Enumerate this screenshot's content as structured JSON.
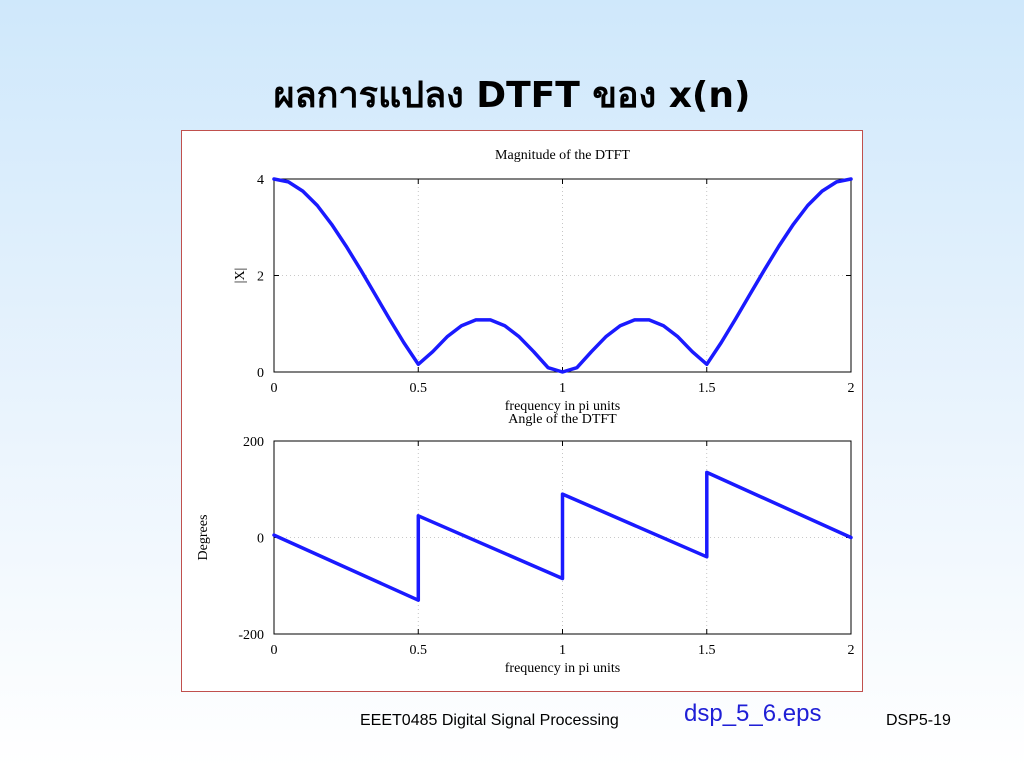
{
  "slide": {
    "title": "ผลการแปลง DTFT ของ x(n)",
    "footer_course": "EEET0485 Digital Signal Processing",
    "footer_file": "dsp_5_6.eps",
    "footer_page": "DSP5-19"
  },
  "colors": {
    "line": "#1a1aff",
    "frame": "#c0504d",
    "file_link": "#1f1fd6"
  },
  "chart_data": [
    {
      "type": "line",
      "title": "Magnitude of the DTFT",
      "xlabel": "frequency in pi units",
      "ylabel": "|X|",
      "xlim": [
        0,
        2
      ],
      "ylim": [
        0,
        4
      ],
      "xticks": [
        "0",
        "0.5",
        "1",
        "1.5",
        "2"
      ],
      "yticks": [
        "0",
        "2",
        "4"
      ],
      "grid": true,
      "series": [
        {
          "x": [
            0,
            0.05,
            0.1,
            0.15,
            0.2,
            0.25,
            0.3,
            0.35,
            0.4,
            0.45,
            0.5,
            0.55,
            0.6,
            0.65,
            0.7,
            0.75,
            0.8,
            0.85,
            0.9,
            0.95,
            1.0,
            1.05,
            1.1,
            1.15,
            1.2,
            1.25,
            1.3,
            1.35,
            1.4,
            1.45,
            1.5,
            1.55,
            1.6,
            1.65,
            1.7,
            1.75,
            1.8,
            1.85,
            1.9,
            1.95,
            2.0
          ],
          "y": [
            4.0,
            3.94,
            3.75,
            3.45,
            3.06,
            2.61,
            2.12,
            1.61,
            1.1,
            0.61,
            0.16,
            0.42,
            0.73,
            0.96,
            1.08,
            1.08,
            0.96,
            0.73,
            0.42,
            0.09,
            0.0,
            0.09,
            0.42,
            0.73,
            0.96,
            1.08,
            1.08,
            0.96,
            0.73,
            0.42,
            0.16,
            0.61,
            1.1,
            1.61,
            2.12,
            2.61,
            3.06,
            3.45,
            3.75,
            3.94,
            4.0
          ]
        }
      ]
    },
    {
      "type": "line",
      "title": "Angle of the DTFT",
      "xlabel": "frequency in pi units",
      "ylabel": "Degrees",
      "xlim": [
        0,
        2
      ],
      "ylim": [
        -200,
        200
      ],
      "xticks": [
        "0",
        "0.5",
        "1",
        "1.5",
        "2"
      ],
      "yticks": [
        "-200",
        "0",
        "200"
      ],
      "grid": true,
      "series": [
        {
          "x": [
            0,
            0.5,
            0.5,
            1.0,
            1.0,
            1.5,
            1.5,
            2.0
          ],
          "y": [
            5,
            -130,
            45,
            -85,
            90,
            -40,
            135,
            0
          ]
        }
      ]
    }
  ]
}
